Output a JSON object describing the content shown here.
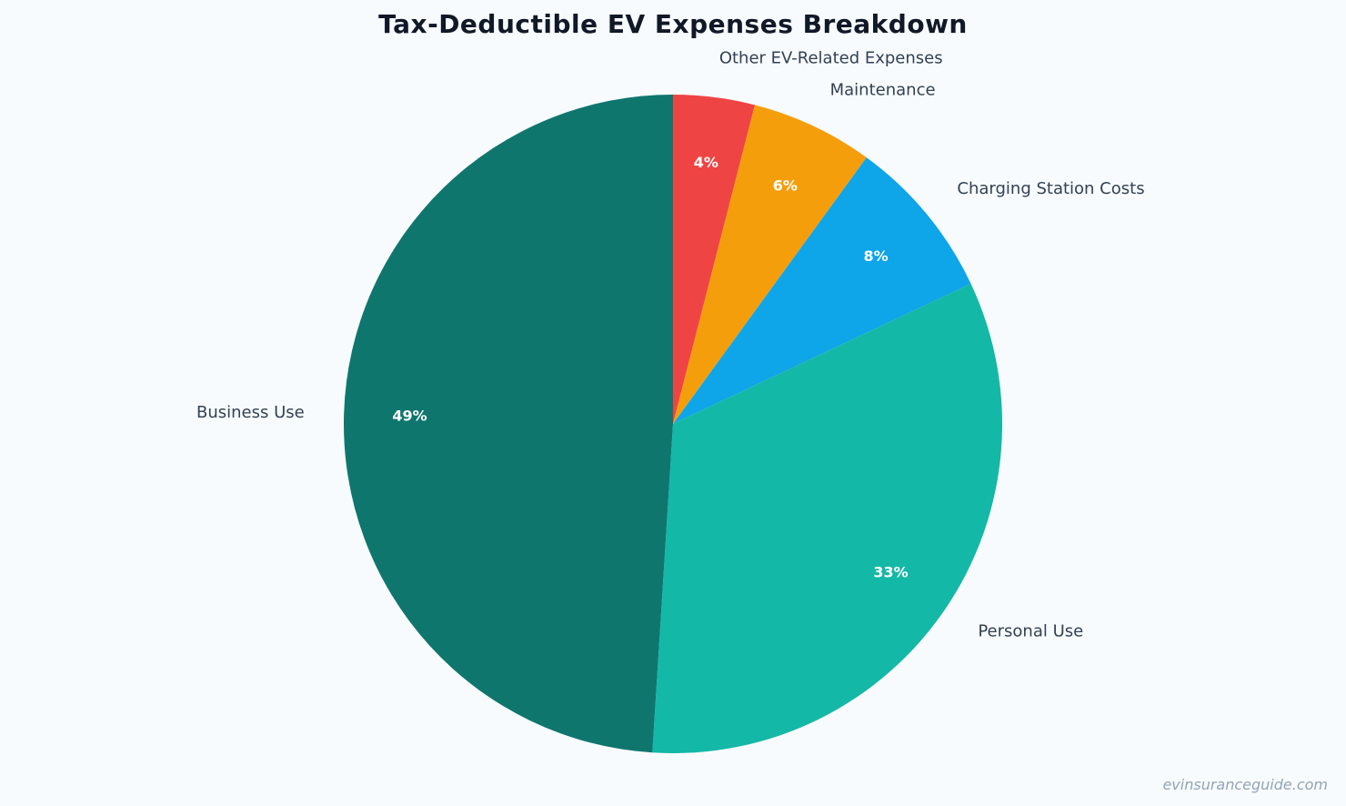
{
  "chart_data": {
    "type": "pie",
    "title": "Tax-Deductible EV Expenses Breakdown",
    "slices": [
      {
        "label": "Other EV-Related Expenses",
        "value": 4,
        "pct_label": "4%",
        "color": "#ef4444"
      },
      {
        "label": "Maintenance",
        "value": 6,
        "pct_label": "6%",
        "color": "#f59e0b"
      },
      {
        "label": "Charging Station Costs",
        "value": 8,
        "pct_label": "8%",
        "color": "#0ea5e9"
      },
      {
        "label": "Personal Use",
        "value": 33,
        "pct_label": "33%",
        "color": "#14b8a6"
      },
      {
        "label": "Business Use",
        "value": 49,
        "pct_label": "49%",
        "color": "#0f766e"
      }
    ],
    "start_angle": "12 o'clock",
    "direction": "clockwise"
  },
  "watermark": "evinsuranceguide.com"
}
